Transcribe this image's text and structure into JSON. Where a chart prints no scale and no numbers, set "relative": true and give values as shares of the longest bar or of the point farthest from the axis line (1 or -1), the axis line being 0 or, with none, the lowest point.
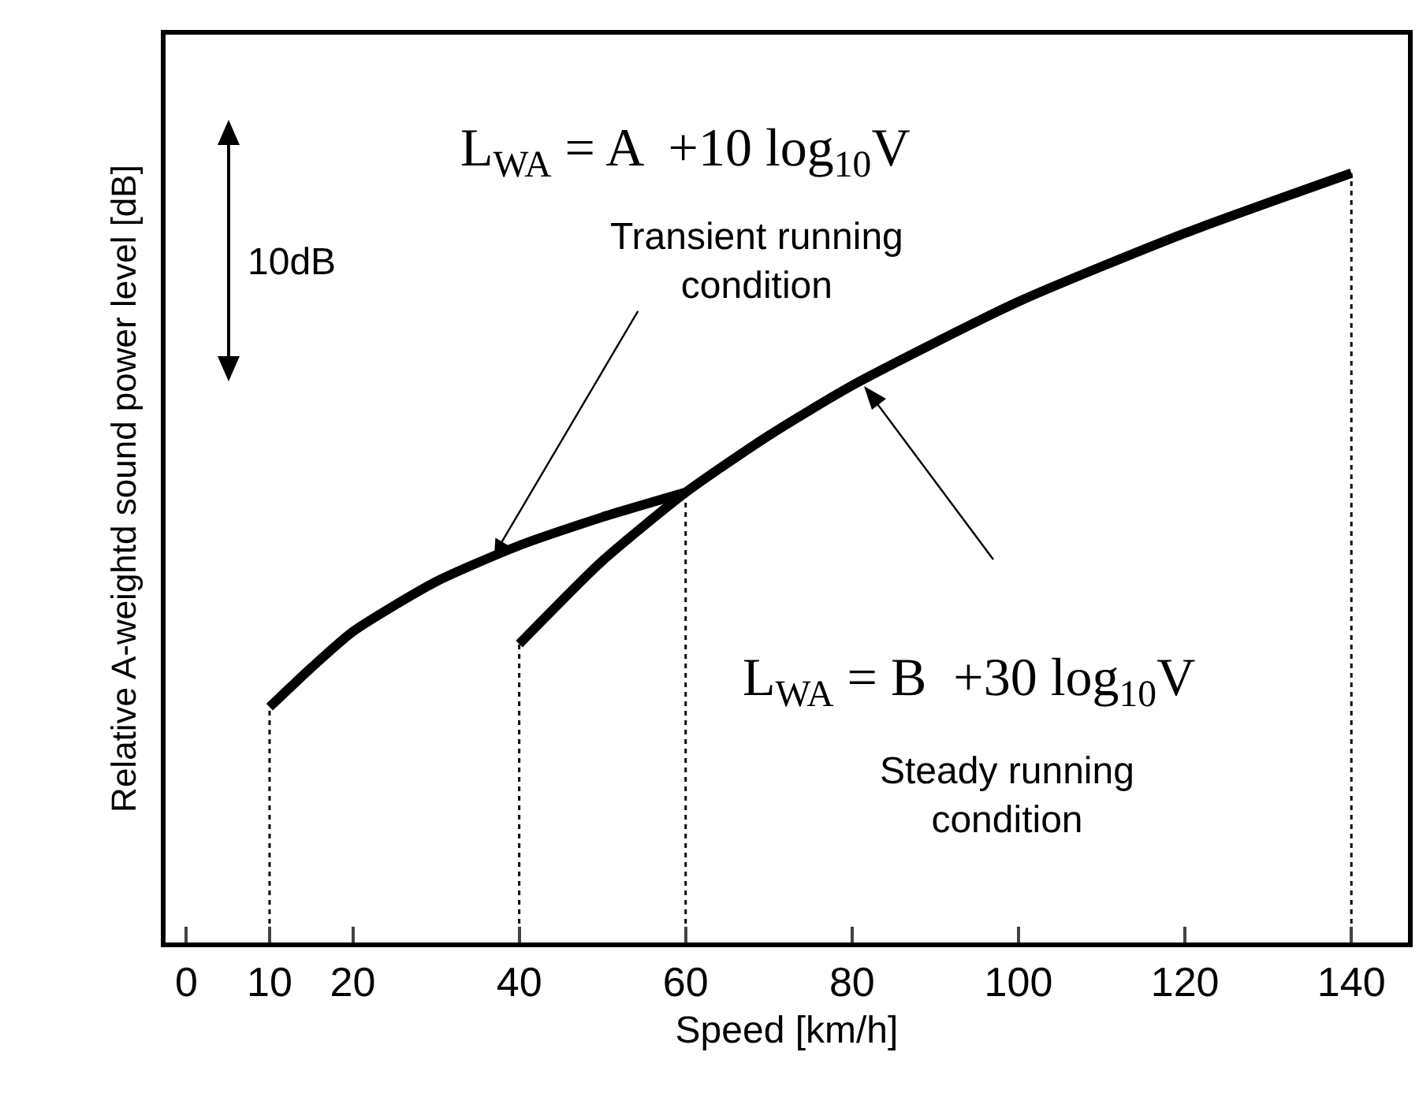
{
  "chart_data": {
    "type": "line",
    "xlabel": "Speed [km/h]",
    "ylabel": "Relative A-weightd sound power level [dB]",
    "relative": true,
    "grid": false,
    "marker": "none",
    "line_style": "solid",
    "xlim": [
      -2.5,
      146.8
    ],
    "xticks": [
      0,
      10,
      20,
      40,
      60,
      80,
      100,
      120,
      140
    ],
    "series": [
      {
        "color": "#000000",
        "x": [
          10,
          15,
          20,
          30,
          40,
          50,
          60
        ],
        "values": [
          0.306,
          0.357,
          0.404,
          0.469,
          0.516,
          0.553,
          0.585
        ]
      },
      {
        "color": "#000000",
        "x": [
          40,
          50,
          60,
          70,
          80,
          100,
          120,
          140
        ],
        "values": [
          0.388,
          0.496,
          0.585,
          0.659,
          0.724,
          0.833,
          0.922,
          1.0
        ]
      }
    ],
    "ref_lines": [
      {
        "axis": "x",
        "value": 10,
        "line_style": "dotted",
        "color": "#000000"
      },
      {
        "axis": "x",
        "value": 40,
        "line_style": "dotted",
        "color": "#000000"
      },
      {
        "axis": "x",
        "value": 60,
        "line_style": "dotted",
        "color": "#000000"
      },
      {
        "axis": "x",
        "value": 140,
        "line_style": "dotted",
        "color": "#000000"
      }
    ],
    "annotations": [
      "10dB",
      "L$_{WA}$ = A  +10 log$_{10}$V",
      {
        "text": "Transient running condition",
        "x": 37,
        "y": 0.504
      },
      "L$_{WA}$ = B  +30 log$_{10}$V",
      "Steady running condition"
    ]
  }
}
